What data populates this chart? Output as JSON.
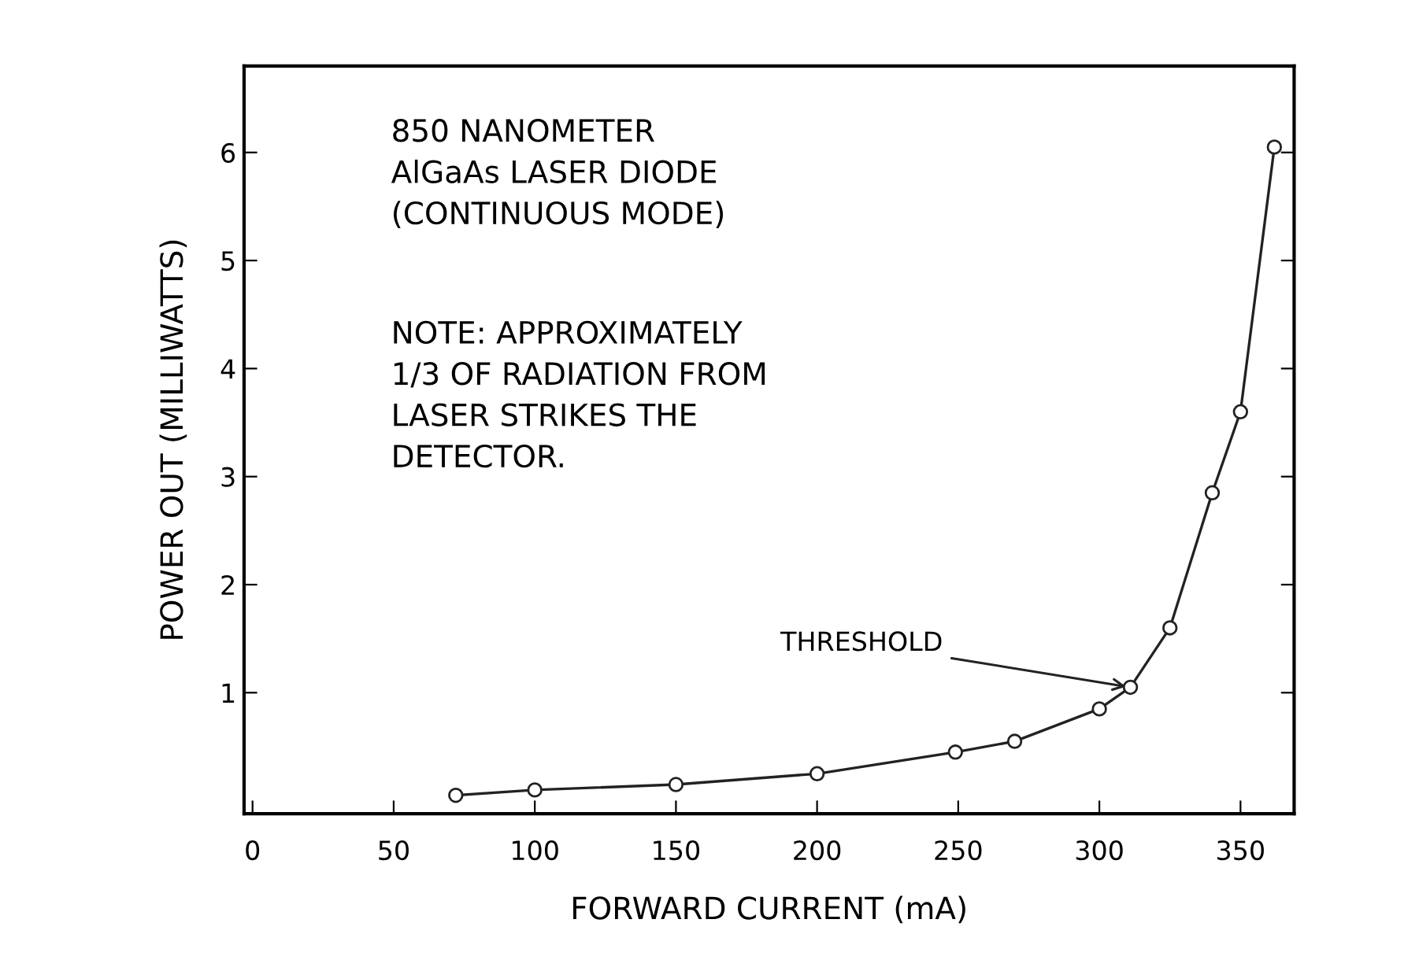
{
  "chart_data": {
    "type": "line",
    "xlabel": "FORWARD CURRENT (mA)",
    "ylabel": "POWER OUT (MILLIWATTS)",
    "x": [
      72,
      100,
      150,
      200,
      249,
      270,
      300,
      311,
      325,
      340,
      350,
      362
    ],
    "series": [
      {
        "color": "#222222",
        "values": [
          0.05,
          0.1,
          0.15,
          0.25,
          0.45,
          0.55,
          0.85,
          1.05,
          1.6,
          2.85,
          3.6,
          6.05
        ]
      }
    ],
    "marker": "circle",
    "line_style": "solid",
    "grid": false,
    "legend": false,
    "xlim": [
      -3,
      369
    ],
    "xticks": [
      0,
      50,
      100,
      150,
      200,
      250,
      300,
      350
    ],
    "ylim": [
      -0.12,
      6.8
    ],
    "yticks": [
      1,
      2,
      3,
      4,
      5,
      6
    ],
    "annotations": [
      "850 NANOMETER\nAlGaAs LASER DIODE\n(CONTINUOUS MODE)",
      "NOTE: APPROXIMATELY\n1/3 OF RADIATION FROM\nLASER STRIKES THE\nDETECTOR.",
      {
        "text": "THRESHOLD",
        "x": 311,
        "y": 1.05
      }
    ]
  }
}
